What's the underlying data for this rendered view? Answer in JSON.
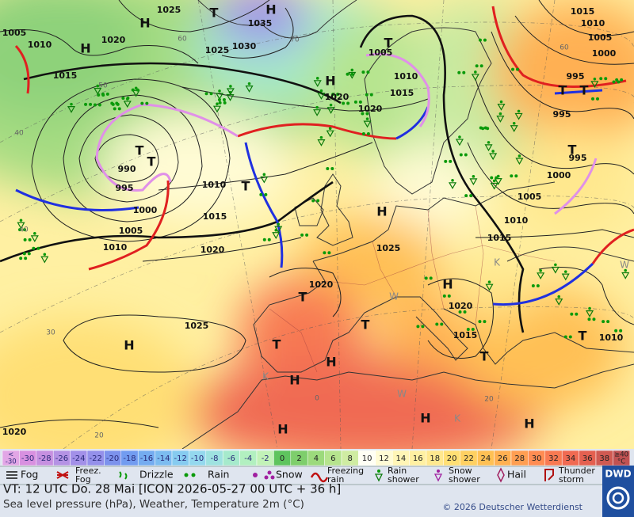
{
  "map": {
    "pressure_labels": [
      "1025",
      "1005",
      "1010",
      "1020",
      "1035",
      "1025",
      "1030",
      "1015",
      "1005",
      "1010",
      "1020",
      "1020",
      "1015",
      "1015",
      "1010",
      "1005",
      "1000",
      "995",
      "995",
      "995",
      "1000",
      "1005",
      "1010",
      "1015",
      "990",
      "995",
      "1000",
      "1005",
      "1010",
      "1010",
      "1015",
      "1020",
      "1025",
      "1020",
      "1020",
      "1015",
      "1010",
      "1025",
      "1020"
    ],
    "centers": [
      "H",
      "H",
      "T",
      "H",
      "T",
      "H",
      "T",
      "T",
      "T",
      "H",
      "T",
      "T",
      "T",
      "H",
      "T",
      "T",
      "T",
      "H",
      "H",
      "H",
      "H",
      "H",
      "H",
      "T",
      "T"
    ],
    "minor_labels": [
      "K",
      "W",
      "K",
      "W",
      "K",
      "W"
    ],
    "grid_labels": [
      "60",
      "50",
      "40",
      "70",
      "60",
      "30",
      "20",
      "0",
      "20",
      "40"
    ]
  },
  "legend": {
    "scale": [
      {
        "lines": [
          "<",
          "-30"
        ],
        "color": "#e2a6e6"
      },
      {
        "lines": [
          "-30"
        ],
        "color": "#d890e0"
      },
      {
        "lines": [
          "-28"
        ],
        "color": "#c690e0"
      },
      {
        "lines": [
          "-26"
        ],
        "color": "#b492e4"
      },
      {
        "lines": [
          "-24"
        ],
        "color": "#a290e8"
      },
      {
        "lines": [
          "-22"
        ],
        "color": "#9490ea"
      },
      {
        "lines": [
          "-20"
        ],
        "color": "#7c92ec"
      },
      {
        "lines": [
          "-18"
        ],
        "color": "#729cf0"
      },
      {
        "lines": [
          "-16"
        ],
        "color": "#74acf0"
      },
      {
        "lines": [
          "-14"
        ],
        "color": "#7cbcf0"
      },
      {
        "lines": [
          "-12"
        ],
        "color": "#86cbf0"
      },
      {
        "lines": [
          "-10"
        ],
        "color": "#94d8ee"
      },
      {
        "lines": [
          "-8"
        ],
        "color": "#9ee2e0"
      },
      {
        "lines": [
          "-6"
        ],
        "color": "#a6eacc"
      },
      {
        "lines": [
          "-4"
        ],
        "color": "#b2f0c0"
      },
      {
        "lines": [
          "-2"
        ],
        "color": "#c2f2b8"
      },
      {
        "lines": [
          "0"
        ],
        "color": "#5ec45e"
      },
      {
        "lines": [
          "2"
        ],
        "color": "#7ece6c"
      },
      {
        "lines": [
          "4"
        ],
        "color": "#9cda7c"
      },
      {
        "lines": [
          "6"
        ],
        "color": "#b6e48e"
      },
      {
        "lines": [
          "8"
        ],
        "color": "#cfeca2"
      },
      {
        "lines": [
          "10"
        ],
        "color": "#fffff4"
      },
      {
        "lines": [
          "12"
        ],
        "color": "#fffbd4"
      },
      {
        "lines": [
          "14"
        ],
        "color": "#fff5b6"
      },
      {
        "lines": [
          "16"
        ],
        "color": "#fff0a2"
      },
      {
        "lines": [
          "18"
        ],
        "color": "#ffe88e"
      },
      {
        "lines": [
          "20"
        ],
        "color": "#ffdf74"
      },
      {
        "lines": [
          "22"
        ],
        "color": "#ffd062"
      },
      {
        "lines": [
          "24"
        ],
        "color": "#ffc054"
      },
      {
        "lines": [
          "26"
        ],
        "color": "#ffb052"
      },
      {
        "lines": [
          "28"
        ],
        "color": "#ff9e52"
      },
      {
        "lines": [
          "30"
        ],
        "color": "#ff8c52"
      },
      {
        "lines": [
          "32"
        ],
        "color": "#f87a52"
      },
      {
        "lines": [
          "34"
        ],
        "color": "#f06a52"
      },
      {
        "lines": [
          "36"
        ],
        "color": "#e46050"
      },
      {
        "lines": [
          "38"
        ],
        "color": "#d05a52"
      },
      {
        "lines": [
          "≥40",
          "°C"
        ],
        "color": "#c05252"
      }
    ],
    "items": [
      {
        "lines": [
          "Fog"
        ]
      },
      {
        "lines": [
          "Freez.",
          "Fog"
        ]
      },
      {
        "lines": [
          "Drizzle"
        ]
      },
      {
        "lines": [
          "Rain"
        ]
      },
      {
        "lines": [
          "Snow"
        ]
      },
      {
        "lines": [
          "Freezing",
          "rain"
        ]
      },
      {
        "lines": [
          "Rain",
          "shower"
        ]
      },
      {
        "lines": [
          "Snow",
          "shower"
        ]
      },
      {
        "lines": [
          "Hail"
        ]
      },
      {
        "lines": [
          "Thunder",
          "storm"
        ]
      }
    ]
  },
  "footer": {
    "valid_time": "VT: 12 UTC Do.  28 Mai [ICON 2026-05-27  00 UTC + 36 h]",
    "description": "Sea level pressure (hPa), Weather, Temperature 2m (°C)",
    "copyright": "© 2026 Deutscher Wetterdienst",
    "logo": "DWD"
  }
}
